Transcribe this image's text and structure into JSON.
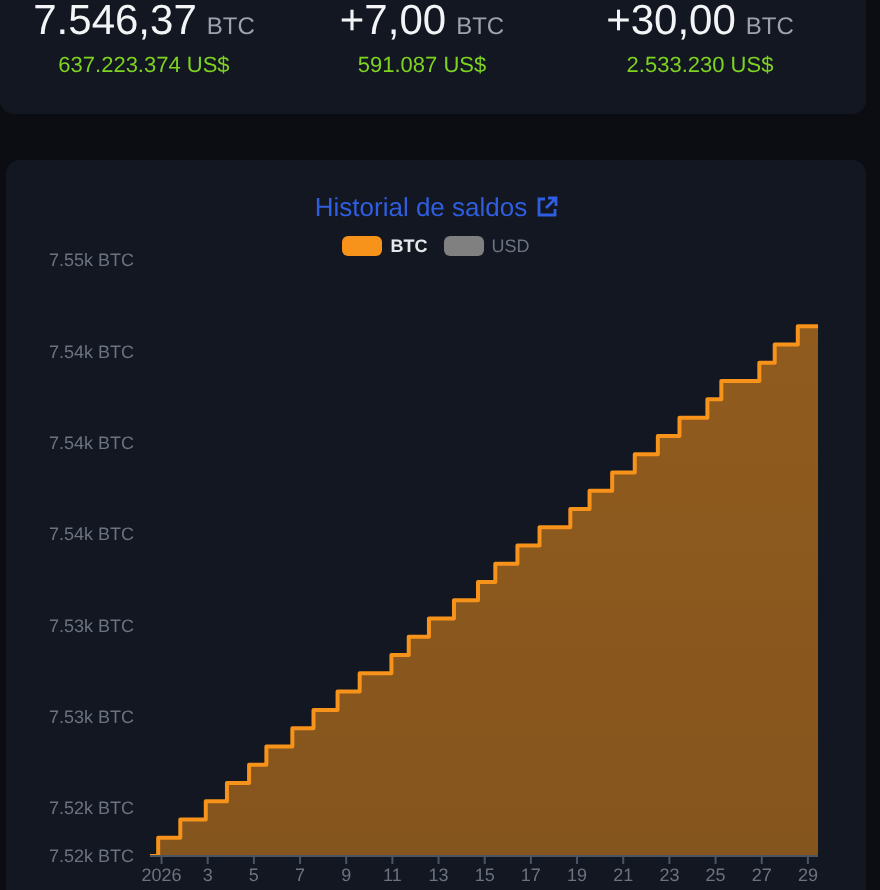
{
  "chart_data": [
    {
      "type": "other",
      "annotations": [
        "7.546,37 BTC",
        "637.223.374 US$",
        "+7,00 BTC",
        "591.087 US$",
        "+30,00 BTC",
        "2.533.230 US$"
      ]
    },
    {
      "type": "area",
      "title": "Historial de saldos",
      "legend": "top",
      "x": [
        "2025-12-31T12:00",
        "2025-12-31T20:30",
        "2026-01-01T19:30",
        "2026-01-02T22:00",
        "2026-01-03T20:00",
        "2026-01-04T19:00",
        "2026-01-05T13:00",
        "2026-01-06T16:00",
        "2026-01-07T14:00",
        "2026-01-08T15:00",
        "2026-01-09T14:00",
        "2026-01-10T23:00",
        "2026-01-11T17:00",
        "2026-01-12T14:00",
        "2026-01-13T16:00",
        "2026-01-14T17:00",
        "2026-01-15T11:00",
        "2026-01-16T10:00",
        "2026-01-17T09:00",
        "2026-01-18T17:00",
        "2026-01-19T13:00",
        "2026-01-20T12:30",
        "2026-01-21T12:00",
        "2026-01-22T12:00",
        "2026-01-23T10:30",
        "2026-01-24T15:30",
        "2026-01-25T06:00",
        "2026-01-26T21:30",
        "2026-01-27T13:30",
        "2026-01-28T13:30",
        "2026-01-29T10:30"
      ],
      "series": [
        {
          "name": "BTC",
          "color": "#f7931a",
          "values": [
            7517.37,
            7518.37,
            7519.37,
            7520.37,
            7521.37,
            7522.37,
            7523.37,
            7524.37,
            7525.37,
            7526.37,
            7527.37,
            7528.37,
            7529.37,
            7530.37,
            7531.37,
            7532.37,
            7533.37,
            7534.37,
            7535.37,
            7536.37,
            7537.37,
            7538.37,
            7539.37,
            7540.37,
            7541.37,
            7542.37,
            7543.37,
            7544.37,
            7545.37,
            7546.37,
            7546.37
          ]
        },
        {
          "name": "USD",
          "color": "#808080",
          "values": [
            null,
            null,
            null,
            null,
            null,
            null,
            null,
            null,
            null,
            null,
            null,
            null,
            null,
            null,
            null,
            null,
            null,
            null,
            null,
            null,
            null,
            null,
            null,
            null,
            null,
            null,
            null,
            null,
            null,
            null,
            null
          ]
        }
      ],
      "xlim": [
        "2025-12-31T12:00",
        "2026-01-29T10:30"
      ],
      "xticks": [
        {
          "value": "2026-01-01",
          "label": "2026"
        },
        {
          "value": "2026-01-03",
          "label": "3"
        },
        {
          "value": "2026-01-05",
          "label": "5"
        },
        {
          "value": "2026-01-07",
          "label": "7"
        },
        {
          "value": "2026-01-09",
          "label": "9"
        },
        {
          "value": "2026-01-11",
          "label": "11"
        },
        {
          "value": "2026-01-13",
          "label": "13"
        },
        {
          "value": "2026-01-15",
          "label": "15"
        },
        {
          "value": "2026-01-17",
          "label": "17"
        },
        {
          "value": "2026-01-19",
          "label": "19"
        },
        {
          "value": "2026-01-21",
          "label": "21"
        },
        {
          "value": "2026-01-23",
          "label": "23"
        },
        {
          "value": "2026-01-25",
          "label": "25"
        },
        {
          "value": "2026-01-27",
          "label": "27"
        },
        {
          "value": "2026-01-29",
          "label": "29"
        }
      ],
      "ylim": [
        7517.37,
        7550
      ],
      "yticks": [
        {
          "value": 7517.37,
          "label": "7.52k BTC"
        },
        {
          "value": 7520,
          "label": "7.52k BTC"
        },
        {
          "value": 7525,
          "label": "7.53k BTC"
        },
        {
          "value": 7530,
          "label": "7.53k BTC"
        },
        {
          "value": 7535,
          "label": "7.54k BTC"
        },
        {
          "value": 7540,
          "label": "7.54k BTC"
        },
        {
          "value": 7545,
          "label": "7.54k BTC"
        },
        {
          "value": 7550,
          "label": "7.55k BTC"
        }
      ]
    }
  ]
}
